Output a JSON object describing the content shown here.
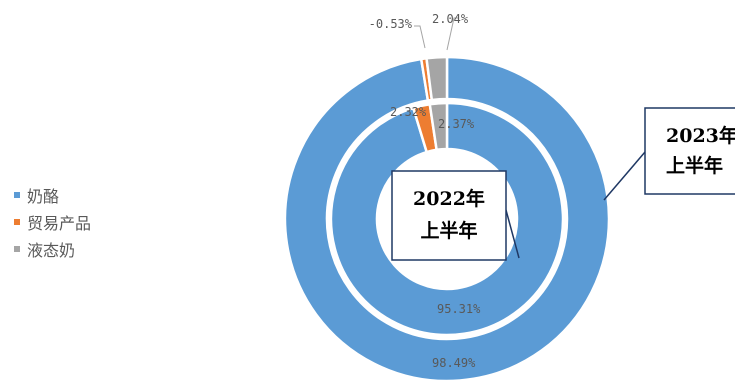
{
  "chart_data": {
    "type": "donut",
    "legend": {
      "position": "left",
      "entries": [
        "奶酪",
        "贸易产品",
        "液态奶"
      ]
    },
    "categories": [
      "奶酪",
      "贸易产品",
      "液态奶"
    ],
    "series": [
      {
        "name": "2023年上半年",
        "ring": "outer",
        "values": [
          98.49,
          -0.53,
          2.04
        ],
        "labels": [
          "98.49%",
          "-0.53%",
          "2.04%"
        ],
        "box_label_lines": [
          "2023年",
          "上半年"
        ]
      },
      {
        "name": "2022年上半年",
        "ring": "inner",
        "values": [
          95.31,
          2.32,
          2.37
        ],
        "labels": [
          "95.31%",
          "2.32%",
          "2.37%"
        ],
        "box_label_lines": [
          "2022年",
          "上半年"
        ]
      }
    ],
    "colors": {
      "奶酪": "#5B9BD5",
      "贸易产品": "#ED7D31",
      "液态奶": "#A5A5A5"
    }
  }
}
